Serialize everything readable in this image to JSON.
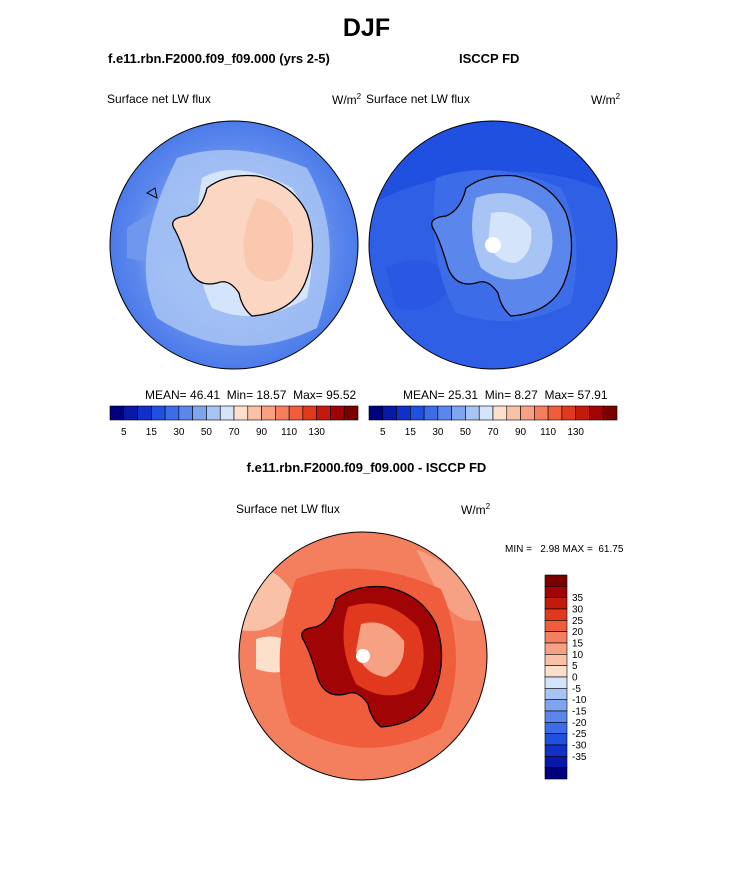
{
  "page_title": "DJF",
  "panels": [
    {
      "title": "f.e11.rbn.F2000.f09_f09.000 (yrs 2-5)",
      "left_label": "Surface net LW flux",
      "units_base": "W/m",
      "units_exp": "2",
      "stats": {
        "mean_label": "MEAN=",
        "mean": "46.41",
        "min_label": "Min=",
        "min": "18.57",
        "max_label": "Max=",
        "max": "95.52"
      }
    },
    {
      "title": "ISCCP FD",
      "left_label": "Surface net LW flux",
      "units_base": "W/m",
      "units_exp": "2",
      "stats": {
        "mean_label": "MEAN=",
        "mean": "25.31",
        "min_label": "Min=",
        "min": "8.27",
        "max_label": "Max=",
        "max": "57.91"
      }
    }
  ],
  "diff_panel": {
    "title": "f.e11.rbn.F2000.f09_f09.000 - ISCCP FD",
    "left_label": "Surface net LW flux",
    "units_base": "W/m",
    "units_exp": "2",
    "minmax": "MIN =   2.98 MAX =  61.75"
  },
  "colorbar_abs": {
    "colors": [
      "#00007f",
      "#0818a8",
      "#1030c8",
      "#2050e0",
      "#3c6ce8",
      "#5b87ec",
      "#7fa4f0",
      "#a8c4f5",
      "#d4e4fa",
      "#fde0cc",
      "#f9c1a6",
      "#f7a184",
      "#f47f5f",
      "#ef5d3c",
      "#e0391e",
      "#c41a0c",
      "#a00404",
      "#7a0000"
    ],
    "tick_labels": [
      "5",
      "15",
      "30",
      "50",
      "70",
      "90",
      "110",
      "130"
    ]
  },
  "colorbar_diff": {
    "colors": [
      "#7a0000",
      "#a00404",
      "#c41a0c",
      "#e0391e",
      "#ef5d3c",
      "#f47f5f",
      "#f7a184",
      "#f9c1a6",
      "#fde0cc",
      "#d4e4fa",
      "#a8c4f5",
      "#7fa4f0",
      "#5b87ec",
      "#3c6ce8",
      "#2050e0",
      "#1030c8",
      "#0818a8",
      "#00007f"
    ],
    "tick_labels": [
      "35",
      "30",
      "25",
      "20",
      "15",
      "10",
      "5",
      "0",
      "-5",
      "-10",
      "-15",
      "-20",
      "-25",
      "-30",
      "-35"
    ]
  }
}
